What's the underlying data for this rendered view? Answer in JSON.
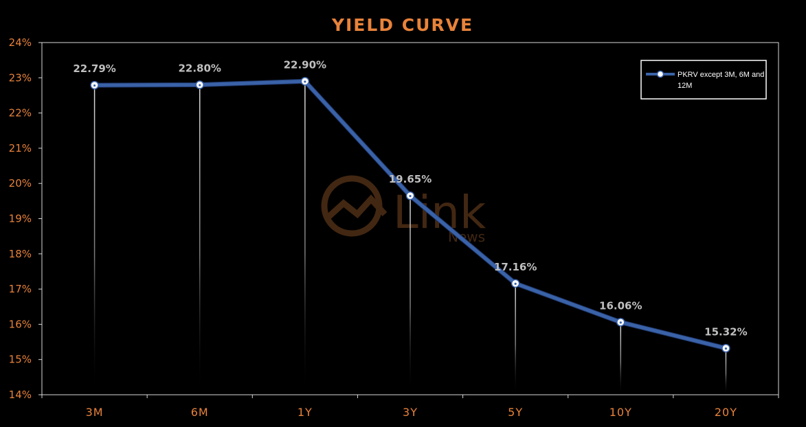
{
  "chart_data": {
    "type": "line",
    "title": "YIELD CURVE",
    "xlabel": "",
    "ylabel": "",
    "categories": [
      "3M",
      "6M",
      "1Y",
      "3Y",
      "5Y",
      "10Y",
      "20Y"
    ],
    "series": [
      {
        "name": "PKRV except 3M, 6M and 12M",
        "values": [
          22.79,
          22.8,
          22.9,
          19.65,
          17.16,
          16.06,
          15.32
        ],
        "labels": [
          "22.79%",
          "22.80%",
          "22.90%",
          "19.65%",
          "17.16%",
          "16.06%",
          "15.32%"
        ]
      }
    ],
    "ylim": [
      14,
      24
    ],
    "yticks": [
      "14%",
      "15%",
      "16%",
      "17%",
      "18%",
      "19%",
      "20%",
      "21%",
      "22%",
      "23%",
      "24%"
    ],
    "grid": false,
    "legend_position": "top-right",
    "legend_lines": [
      "PKRV except 3M, 6M and",
      "12M"
    ],
    "watermark": {
      "text": "Link",
      "subtext": "News"
    },
    "colors": {
      "background": "#000000",
      "title": "#E8823A",
      "tick_labels": "#E8823A",
      "line": "#3A62A8",
      "data_labels": "#BFBFBF",
      "drop_lines": "#D9D9D9",
      "legend_border": "#FFFFFF",
      "legend_text": "#FFFFFF",
      "watermark": "#4A2C14"
    }
  }
}
